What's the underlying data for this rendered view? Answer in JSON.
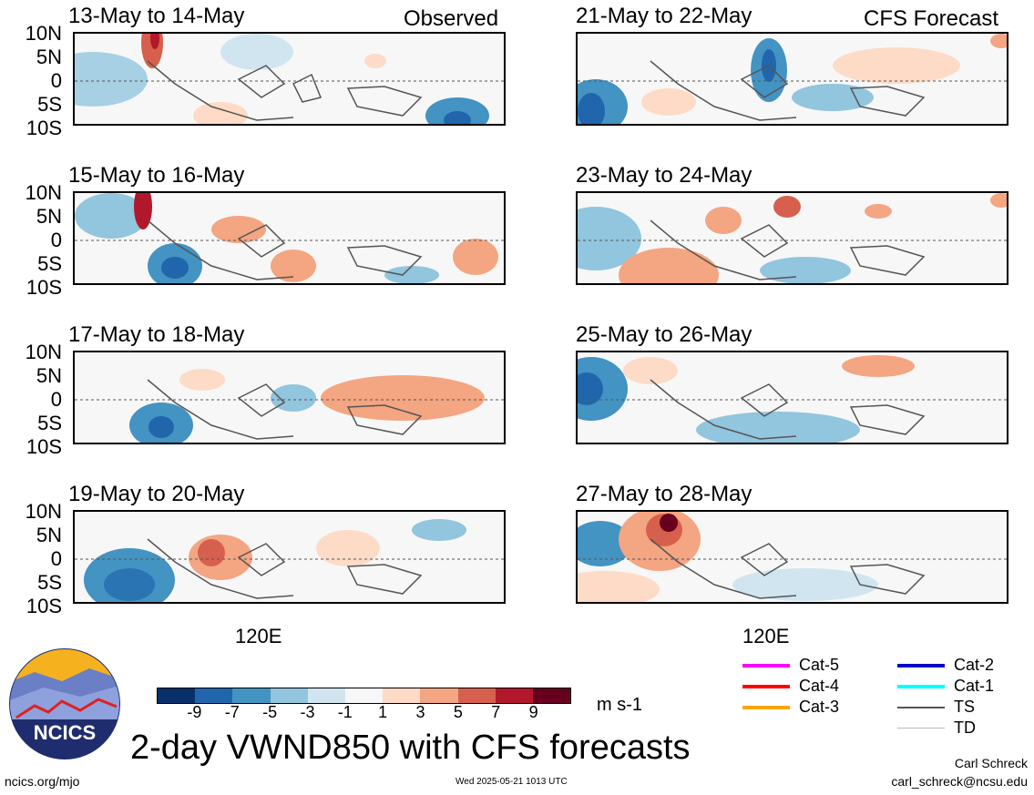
{
  "headers": {
    "observed": "Observed",
    "forecast": "CFS Forecast"
  },
  "left_panels": [
    {
      "title": "13-May to 14-May"
    },
    {
      "title": "15-May to 16-May"
    },
    {
      "title": "17-May to 18-May"
    },
    {
      "title": "19-May to 20-May"
    }
  ],
  "right_panels": [
    {
      "title": "21-May to 22-May"
    },
    {
      "title": "23-May to 24-May"
    },
    {
      "title": "25-May to 26-May"
    },
    {
      "title": "27-May to 28-May"
    }
  ],
  "lat_labels": [
    "10N",
    "5N",
    "0",
    "5S",
    "10S"
  ],
  "lon_label": "120E",
  "colorbar": {
    "colors": [
      "#08306b",
      "#2166ac",
      "#4393c3",
      "#92c5de",
      "#d1e5f0",
      "#f7f7f7",
      "#fddbc7",
      "#f4a582",
      "#d6604d",
      "#b2182b",
      "#67001f"
    ],
    "ticks": [
      "-9",
      "-7",
      "-5",
      "-3",
      "-1",
      "1",
      "3",
      "5",
      "7",
      "9"
    ],
    "units": "m s-1"
  },
  "legend": [
    {
      "label": "Cat-5",
      "color": "#ff00ff"
    },
    {
      "label": "Cat-4",
      "color": "#ff0000"
    },
    {
      "label": "Cat-3",
      "color": "#ffa500"
    },
    {
      "label": "Cat-2",
      "color": "#0000cc"
    },
    {
      "label": "Cat-1",
      "color": "#00ffff"
    },
    {
      "label": "TS",
      "color": "#555555"
    },
    {
      "label": "TD",
      "color": "#bbbbbb"
    }
  ],
  "logo_text": "NCICS",
  "main_title": "2-day VWND850 with CFS forecasts",
  "footer": {
    "url": "ncics.org/mjo",
    "timestamp": "Wed 2025-05-21 1013 UTC",
    "author": "Carl Schreck",
    "email": "carl_schreck@ncsu.edu"
  }
}
